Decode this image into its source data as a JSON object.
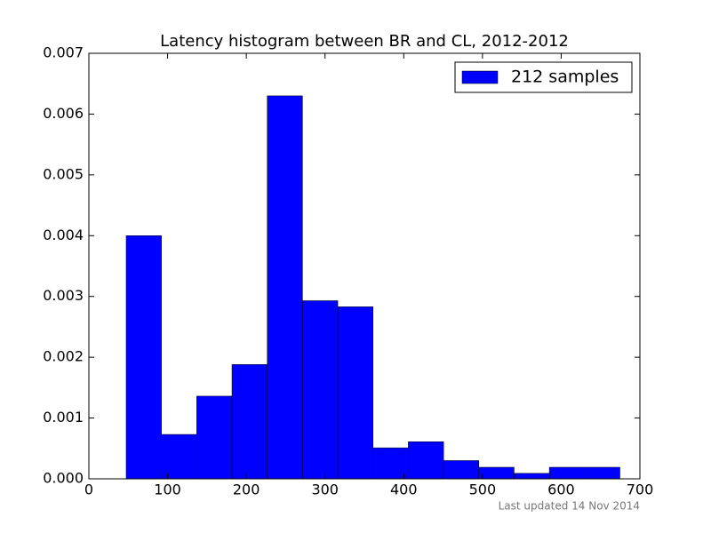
{
  "chart_data": {
    "type": "histogram",
    "title": "Latency histogram between BR and CL, 2012-2012",
    "bins": [
      47.4,
      92.2,
      137.0,
      181.8,
      226.6,
      271.4,
      316.2,
      361.0,
      405.8,
      450.6,
      495.4,
      540.2,
      585.0,
      629.8,
      674.6
    ],
    "series": [
      {
        "name": "212 samples",
        "color": "#0000ff",
        "values": [
          0.004,
          0.00073,
          0.00136,
          0.00188,
          0.0063,
          0.00293,
          0.00283,
          0.00051,
          0.00061,
          0.0003,
          0.00019,
          9e-05,
          0.00019,
          0.00019
        ]
      }
    ],
    "xlim": [
      0,
      700
    ],
    "xticks": [
      0,
      100,
      200,
      300,
      400,
      500,
      600,
      700
    ],
    "ylim": [
      0,
      0.007
    ],
    "yticks": [
      {
        "value": 0,
        "label": "0.000"
      },
      {
        "value": 0.001,
        "label": "0.001"
      },
      {
        "value": 0.002,
        "label": "0.002"
      },
      {
        "value": 0.003,
        "label": "0.003"
      },
      {
        "value": 0.004,
        "label": "0.004"
      },
      {
        "value": 0.005,
        "label": "0.005"
      },
      {
        "value": 0.006,
        "label": "0.006"
      },
      {
        "value": 0.007,
        "label": "0.007"
      }
    ],
    "legend": "upper right",
    "footnote": "Last updated 14 Nov 2014"
  }
}
